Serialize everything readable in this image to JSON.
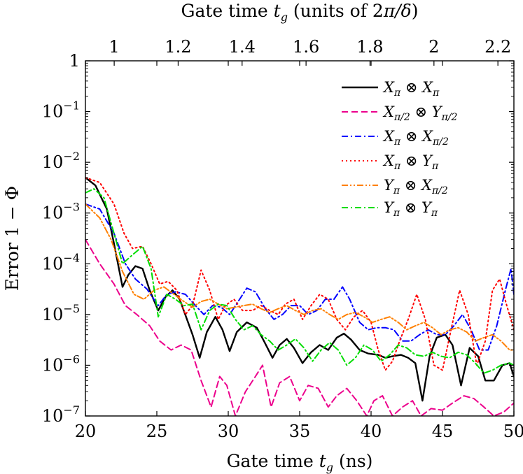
{
  "chart_data": {
    "type": "line",
    "xlabel": "Gate time t_g (ns)",
    "x2label": "Gate time t_g (units of 2π/δ)",
    "ylabel": "Error 1 − Φ",
    "xlim": [
      20,
      50
    ],
    "x2lim": [
      0.91,
      2.25
    ],
    "ylim": [
      1e-07,
      1
    ],
    "yscale": "log",
    "grid": false,
    "legend_position": "top-right",
    "x_ticks": [
      "20",
      "25",
      "30",
      "35",
      "40",
      "45",
      "50"
    ],
    "x2_ticks": [
      "1",
      "1.2",
      "1.4",
      "1.6",
      "1.8",
      "2",
      "2.2"
    ],
    "y_ticks": [
      "1",
      "10^−1",
      "10^−2",
      "10^−3",
      "10^−4",
      "10^−5",
      "10^−6",
      "10^−7"
    ],
    "series": [
      {
        "name": "Xπ ⊗ Xπ",
        "color": "#000000",
        "style": "solid",
        "x": [
          20,
          20.7,
          21.5,
          22,
          22.6,
          23,
          23.5,
          24,
          24.5,
          25.1,
          25.6,
          26.1,
          26.6,
          27.5,
          28,
          28.5,
          29.1,
          29.6,
          30.1,
          30.6,
          31.3,
          32,
          32.5,
          33.1,
          33.6,
          34.1,
          34.6,
          35.2,
          35.8,
          36.4,
          37,
          37.6,
          38.1,
          38.6,
          39.2,
          39.8,
          40.5,
          41,
          41.5,
          42.1,
          42.6,
          43.1,
          43.6,
          44.1,
          44.6,
          45.2,
          45.7,
          46.3,
          46.9,
          47.5,
          48,
          48.6,
          49.2,
          49.7,
          50
        ],
        "y": [
          0.005,
          0.0035,
          0.0012,
          0.00025,
          3.5e-05,
          6e-05,
          9e-05,
          8e-05,
          3e-05,
          1.2e-05,
          2.2e-05,
          3e-05,
          2e-05,
          4e-06,
          1.4e-06,
          4.5e-06,
          9e-06,
          5e-06,
          1.9e-06,
          4.5e-06,
          7e-06,
          5.5e-06,
          3e-06,
          1.4e-06,
          2.5e-06,
          3.3e-06,
          2.2e-06,
          1.1e-06,
          1.8e-06,
          2.5e-06,
          2e-06,
          3.5e-06,
          4.2e-06,
          3.2e-06,
          2e-06,
          1.7e-06,
          1.6e-06,
          1.4e-06,
          1.5e-06,
          1.6e-06,
          1.4e-06,
          1.1e-06,
          2e-07,
          1.5e-06,
          3.5e-06,
          4e-06,
          2.5e-06,
          4e-07,
          2.2e-06,
          1.5e-06,
          5e-07,
          5e-07,
          1e-06,
          1.1e-06,
          6e-07
        ]
      },
      {
        "name": "Xπ/2 ⊗ Yπ/2",
        "color": "#ec008c",
        "style": "dashed",
        "x": [
          20,
          21,
          22,
          22.8,
          23.6,
          24.5,
          25.2,
          26,
          26.7,
          27.4,
          28.1,
          28.8,
          29.4,
          29.9,
          30.5,
          31.2,
          31.9,
          32.4,
          33,
          33.6,
          34.3,
          35,
          35.6,
          36.3,
          37,
          37.6,
          38.3,
          39,
          39.7,
          40.2,
          40.8,
          41.5,
          42.2,
          42.9,
          43.5,
          44.2,
          45,
          45.7,
          46.5,
          47.2,
          47.9,
          48.6,
          49.3,
          50
        ],
        "y": [
          0.0003,
          0.0001,
          4e-05,
          1.5e-05,
          1e-05,
          6e-06,
          3e-06,
          2e-06,
          2.5e-06,
          2e-06,
          5e-07,
          1.5e-07,
          6e-07,
          4e-07,
          1e-07,
          3e-07,
          6e-07,
          1e-06,
          1.5e-07,
          4.5e-07,
          6e-07,
          2e-07,
          4e-07,
          3.5e-07,
          1.5e-07,
          2.5e-07,
          3.5e-07,
          2e-07,
          1e-07,
          2e-07,
          2.5e-07,
          1e-07,
          1.5e-07,
          2e-07,
          1e-07,
          1.4e-07,
          1.3e-07,
          1.8e-07,
          2.5e-07,
          2.2e-07,
          1.5e-07,
          1e-07,
          1.2e-07,
          1.8e-07
        ]
      },
      {
        "name": "Xπ ⊗ Xπ/2",
        "color": "#0000ff",
        "style": "dashdot",
        "x": [
          20,
          21,
          22,
          22.8,
          23.5,
          24.3,
          25.1,
          25.7,
          26.3,
          27,
          27.7,
          28.3,
          28.9,
          29.5,
          30.1,
          30.8,
          31.3,
          31.9,
          32.6,
          33.2,
          33.8,
          34.4,
          35,
          35.6,
          36.2,
          36.8,
          37.4,
          38,
          38.5,
          39.2,
          39.8,
          40.4,
          41,
          41.6,
          42.2,
          42.8,
          43.4,
          44,
          44.6,
          45.2,
          45.8,
          46.4,
          47,
          47.6,
          48.2,
          48.8,
          49.4,
          49.8,
          50
        ],
        "y": [
          0.0015,
          0.0012,
          0.0004,
          0.0001,
          5e-05,
          3.2e-05,
          1.5e-05,
          2.5e-05,
          2.8e-05,
          2.5e-05,
          1.5e-05,
          1e-05,
          1.5e-05,
          1.4e-05,
          1e-05,
          2e-05,
          3.3e-05,
          2.8e-05,
          1.3e-05,
          8e-06,
          1e-05,
          1.5e-05,
          1.5e-05,
          1e-05,
          1.2e-05,
          2e-05,
          2e-05,
          3.5e-05,
          2e-05,
          7e-06,
          5e-06,
          5.5e-06,
          5.5e-06,
          5e-06,
          3e-06,
          3e-06,
          4e-06,
          5e-06,
          4e-06,
          4e-06,
          6e-06,
          1e-05,
          5e-06,
          2e-06,
          2e-06,
          6e-06,
          3e-05,
          8e-05,
          2.5e-05
        ]
      },
      {
        "name": "Xπ ⊗ Yπ",
        "color": "#ff0000",
        "style": "dotted",
        "x": [
          20,
          21,
          22,
          22.7,
          23.3,
          24,
          24.6,
          25.2,
          25.8,
          26.4,
          27,
          27.5,
          28.1,
          28.7,
          29.3,
          29.8,
          30.4,
          31,
          31.7,
          32.3,
          32.9,
          33.5,
          34,
          34.6,
          35.2,
          35.8,
          36.4,
          37,
          37.6,
          38.2,
          38.8,
          39.4,
          40,
          40.5,
          41,
          41.5,
          42,
          42.6,
          43.2,
          43.8,
          44.4,
          45,
          45.6,
          46.2,
          46.8,
          47.4,
          48,
          48.5,
          49,
          49.5,
          50
        ],
        "y": [
          0.005,
          0.004,
          0.0015,
          0.0004,
          0.0002,
          0.00022,
          0.0001,
          4e-05,
          4.5e-05,
          3e-05,
          1e-05,
          1.5e-05,
          7.5e-05,
          3e-05,
          8e-06,
          1.5e-05,
          2e-05,
          1.2e-05,
          1.2e-05,
          1.5e-05,
          1.2e-05,
          1e-05,
          1.6e-05,
          2e-05,
          8e-06,
          1.5e-05,
          2.5e-05,
          2e-05,
          8e-06,
          5e-06,
          9e-06,
          1.2e-05,
          7e-06,
          2e-06,
          8e-07,
          1.2e-06,
          3e-06,
          8e-06,
          2.5e-05,
          8e-06,
          1e-06,
          8e-07,
          5e-06,
          3e-05,
          1e-05,
          1e-06,
          3e-06,
          3e-05,
          5e-05,
          1.5e-05,
          5e-06
        ]
      },
      {
        "name": "Yπ ⊗ Xπ/2",
        "color": "#ff8000",
        "style": "dashdotdot",
        "x": [
          20,
          21,
          21.8,
          22.6,
          23.4,
          24.1,
          24.8,
          25.5,
          26.2,
          26.9,
          27.5,
          28.1,
          28.7,
          29.3,
          29.9,
          30.5,
          31.1,
          31.7,
          32.3,
          32.9,
          33.5,
          34.1,
          34.7,
          35.3,
          35.9,
          36.5,
          37.1,
          37.7,
          38.3,
          38.9,
          39.5,
          40.1,
          40.7,
          41.3,
          41.9,
          42.5,
          43.1,
          43.7,
          44.3,
          44.9,
          45.5,
          46.1,
          46.7,
          47.3,
          47.9,
          48.5,
          49.1,
          49.7,
          50
        ],
        "y": [
          0.0015,
          0.0008,
          0.0003,
          7e-05,
          2.5e-05,
          2e-05,
          3e-05,
          3.5e-05,
          2.5e-05,
          1.8e-05,
          1.4e-05,
          1.8e-05,
          2e-05,
          1.6e-05,
          1.3e-05,
          1.4e-05,
          1.5e-05,
          1.6e-05,
          1.3e-05,
          1.1e-05,
          1.3e-05,
          1.5e-05,
          1.2e-05,
          1e-05,
          1.2e-05,
          1.3e-05,
          1e-05,
          8e-06,
          1e-05,
          1.1e-05,
          9e-06,
          7e-06,
          8e-06,
          9e-06,
          7e-06,
          5e-06,
          6e-06,
          7e-06,
          5.5e-06,
          4e-06,
          5e-06,
          5.5e-06,
          4.5e-06,
          3e-06,
          3.5e-06,
          4e-06,
          3e-06,
          2e-06,
          2e-06
        ]
      },
      {
        "name": "Yπ ⊗ Yπ",
        "color": "#00dd00",
        "style": "dashdot",
        "x": [
          20,
          20.6,
          21.3,
          22,
          22.6,
          23.3,
          24,
          24.6,
          25.1,
          25.7,
          26.3,
          26.9,
          27.5,
          28.1,
          28.7,
          29.3,
          29.9,
          30.5,
          31.1,
          31.7,
          32.3,
          32.9,
          33.5,
          34.1,
          34.7,
          35.3,
          35.9,
          36.5,
          37.1,
          37.7,
          38.3,
          38.9,
          39.5,
          40.1,
          40.7,
          41.3,
          41.9,
          42.5,
          43.1,
          43.7,
          44.3,
          44.9,
          45.5,
          46.1,
          46.7,
          47.3,
          47.9,
          48.5,
          49.1,
          49.7,
          50
        ],
        "y": [
          0.0025,
          0.003,
          0.002,
          0.0004,
          0.0001,
          0.00015,
          0.00022,
          8e-05,
          9e-06,
          2.5e-05,
          2e-05,
          1.5e-05,
          1.6e-05,
          5e-06,
          1.2e-05,
          1.6e-05,
          1.5e-05,
          8e-06,
          5e-06,
          6e-06,
          4e-06,
          3e-06,
          2e-06,
          2.5e-06,
          3.3e-06,
          2.2e-06,
          1.2e-06,
          2e-06,
          2.8e-06,
          2e-06,
          1e-06,
          1.4e-06,
          2.5e-06,
          2e-06,
          1.2e-06,
          1.6e-06,
          2.5e-06,
          2.2e-06,
          1.6e-06,
          1.5e-06,
          1.8e-06,
          1.5e-06,
          1.4e-06,
          1.8e-06,
          1.6e-06,
          1.1e-06,
          7e-07,
          8e-07,
          1e-06,
          1.1e-06,
          1e-06
        ]
      }
    ]
  }
}
